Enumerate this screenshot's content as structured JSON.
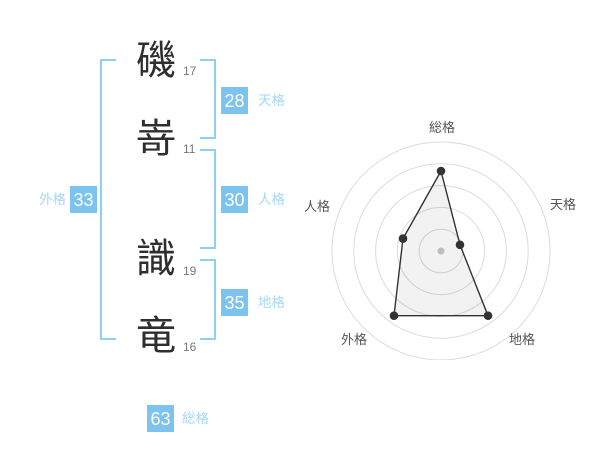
{
  "name": {
    "characters": [
      {
        "char": "磯",
        "strokes": "17"
      },
      {
        "char": "嵜",
        "strokes": "11"
      },
      {
        "char": "識",
        "strokes": "19"
      },
      {
        "char": "竜",
        "strokes": "16"
      }
    ]
  },
  "scores": {
    "tenkaku": {
      "value": "28",
      "label": "天格"
    },
    "jinkaku": {
      "value": "30",
      "label": "人格"
    },
    "chikaku": {
      "value": "35",
      "label": "地格"
    },
    "gaikaku": {
      "value": "33",
      "label": "外格"
    },
    "soukaku": {
      "value": "63",
      "label": "総格"
    }
  },
  "colors": {
    "score_box": "#7cc4ef",
    "bracket": "#90cff4",
    "score_label": "#a6d8f7",
    "ring": "#dbdbdb",
    "polygon_stroke": "#333333",
    "vertex_dot": "#333333",
    "center_dot": "#bdbdbd",
    "axis_label": "#555555"
  },
  "chart_data": {
    "type": "radar",
    "categories": [
      "総格",
      "天格",
      "地格",
      "外格",
      "人格"
    ],
    "values": [
      4,
      1,
      4,
      4,
      2
    ],
    "scale_max": 5,
    "rings": 5,
    "grid": "concentric-circles",
    "legend": "none",
    "title": ""
  }
}
